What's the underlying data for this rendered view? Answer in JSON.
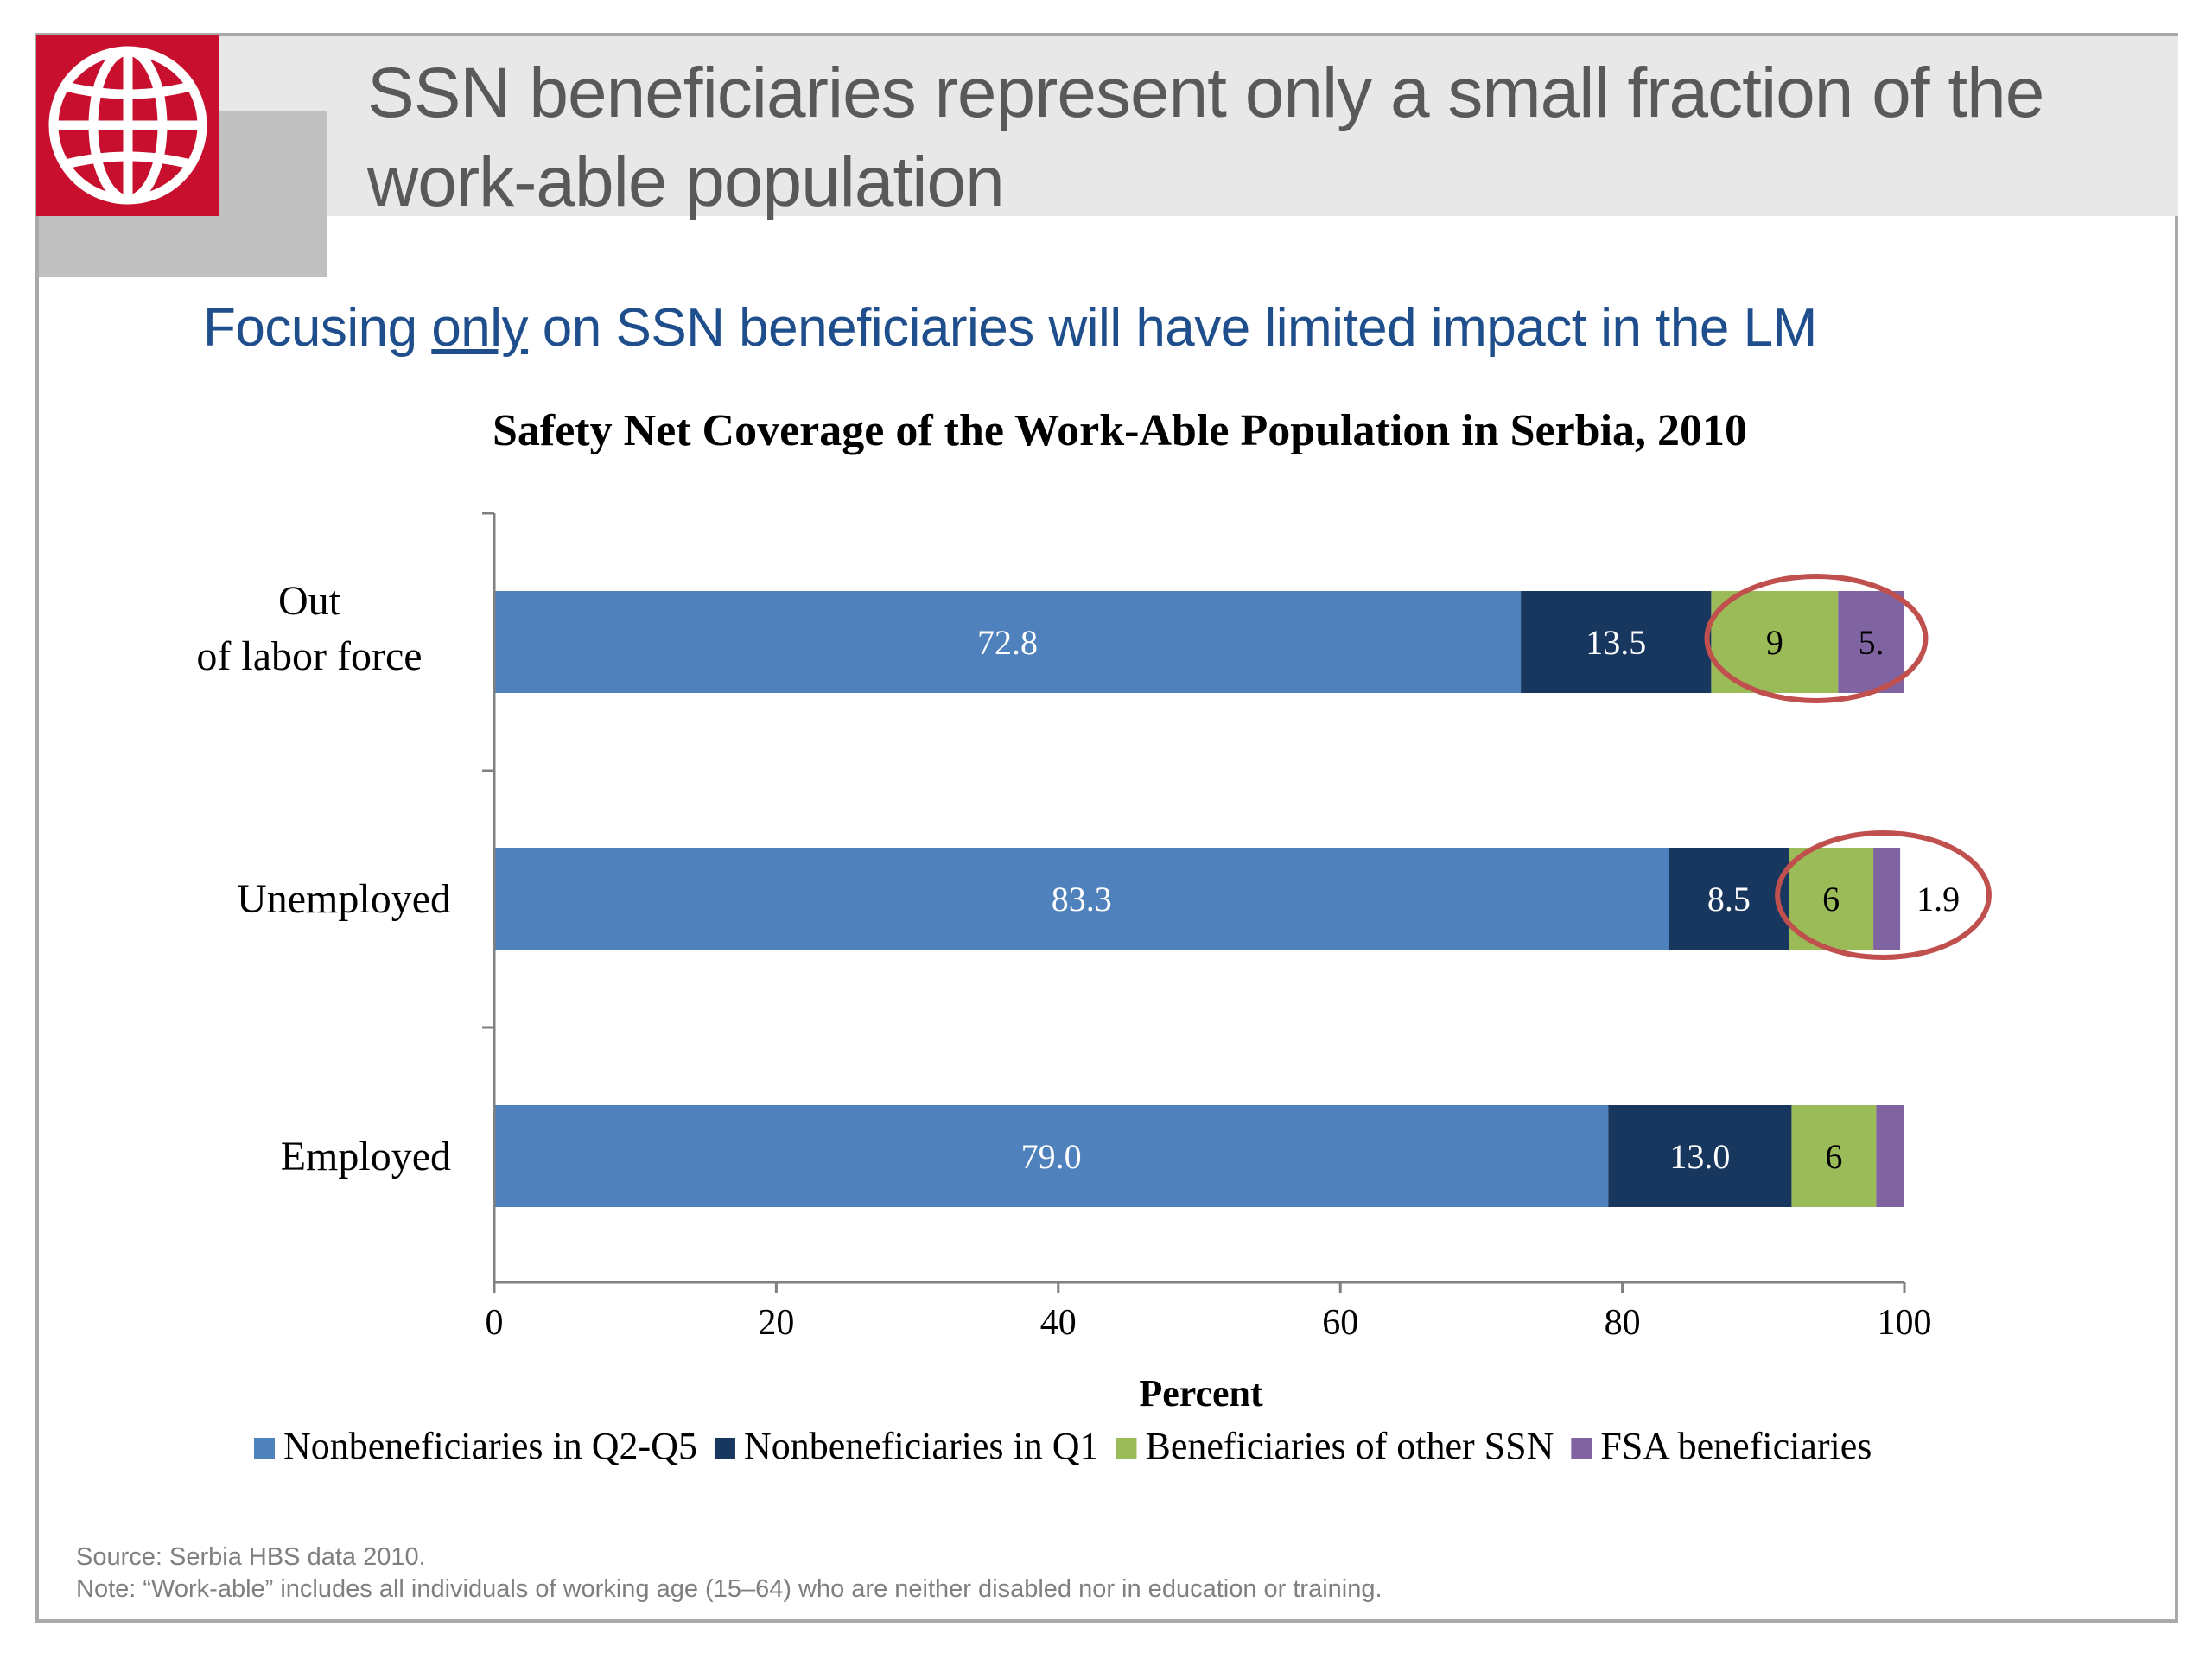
{
  "slide": {
    "title": "SSN beneficiaries represent only a small fraction of the work-able population",
    "subtitle_before": "Focusing ",
    "subtitle_emphasis": "only",
    "subtitle_after": " on SSN beneficiaries will have limited impact in the LM",
    "source": "Source: Serbia HBS data 2010.",
    "note": "Note: “Work-able” includes all individuals of working age (15–64) who are neither disabled nor in education or training."
  },
  "logo": {
    "icon": "globe-icon",
    "color": "#c8102e"
  },
  "chart_data": {
    "type": "bar",
    "orientation": "horizontal",
    "stacked": true,
    "title": "Safety Net Coverage of the Work-Able Population in Serbia, 2010",
    "xlabel": "Percent",
    "ylabel": "",
    "xlim": [
      0,
      100
    ],
    "xticks": [
      0,
      20,
      40,
      60,
      80,
      100
    ],
    "grid": false,
    "legend_position": "bottom",
    "categories": [
      {
        "line1": "Out",
        "line2": "of labor force"
      },
      {
        "line1": "Unemployed",
        "line2": ""
      },
      {
        "line1": "Employed",
        "line2": ""
      }
    ],
    "series": [
      {
        "name": "Nonbeneficiaries in Q2-Q5",
        "color": "#4f81bd",
        "label_color": "#ffffff",
        "values": [
          72.8,
          83.3,
          79.0
        ],
        "labels": [
          "72.8",
          "83.3",
          "79.0"
        ]
      },
      {
        "name": "Nonbeneficiaries in Q1",
        "color": "#17375e",
        "label_color": "#ffffff",
        "values": [
          13.5,
          8.5,
          13.0
        ],
        "labels": [
          "13.5",
          "8.5",
          "13.0"
        ]
      },
      {
        "name": "Beneficiaries of other SSN",
        "color": "#9bbb59",
        "label_color": "#000000",
        "values": [
          9,
          6,
          6
        ],
        "labels": [
          "9",
          "6",
          "6"
        ]
      },
      {
        "name": "FSA beneficiaries",
        "color": "#8064a2",
        "label_color": "#000000",
        "values": [
          5,
          1.9,
          2
        ],
        "labels": [
          "5.",
          "1.9",
          ""
        ],
        "label_outside": [
          false,
          true,
          false
        ]
      }
    ],
    "highlights": [
      {
        "category_index": 0,
        "from_value": 86,
        "to_value": 101.5,
        "color": "#c0504d"
      },
      {
        "category_index": 1,
        "from_value": 91,
        "to_value": 106,
        "color": "#c0504d"
      }
    ]
  }
}
